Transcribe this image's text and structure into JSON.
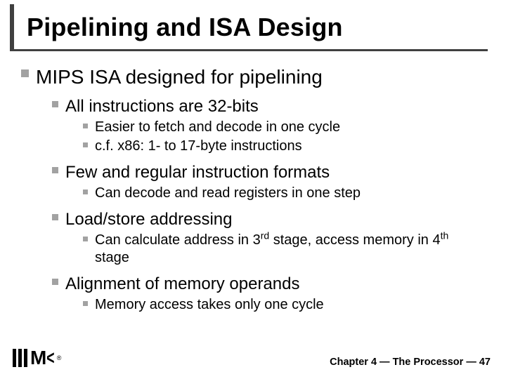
{
  "title": "Pipelining and ISA Design",
  "b1": "MIPS ISA designed for pipelining",
  "b2a": "All instructions are 32-bits",
  "b3a": "Easier to fetch and decode in one cycle",
  "b3b": "c.f. x86: 1- to 17-byte instructions",
  "b2b": "Few and regular instruction formats",
  "b3c": "Can decode and read registers in one step",
  "b2c": "Load/store addressing",
  "b3d_pre": "Can calculate address in 3",
  "b3d_sup1": "rd",
  "b3d_mid": " stage, access memory in 4",
  "b3d_sup2": "th",
  "b3d_post": " stage",
  "b2d": "Alignment of memory operands",
  "b3e": "Memory access takes only one cycle",
  "footer": "Chapter 4 — The Processor — 47",
  "colors": {
    "rule": "#404040",
    "bullet": "#a2a2a2",
    "text": "#000000",
    "background": "#ffffff"
  }
}
